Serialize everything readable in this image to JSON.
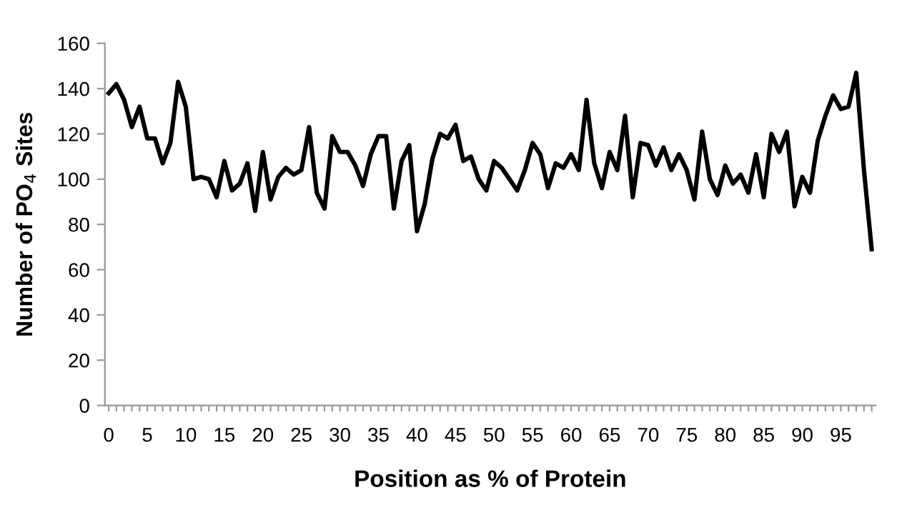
{
  "chart_data": {
    "type": "line",
    "xlabel": "Position as % of Protein",
    "ylabel": "Number of PO$_{4}$ Sites",
    "x": [
      0,
      1,
      2,
      3,
      4,
      5,
      6,
      7,
      8,
      9,
      10,
      11,
      12,
      13,
      14,
      15,
      16,
      17,
      18,
      19,
      20,
      21,
      22,
      23,
      24,
      25,
      26,
      27,
      28,
      29,
      30,
      31,
      32,
      33,
      34,
      35,
      36,
      37,
      38,
      39,
      40,
      41,
      42,
      43,
      44,
      45,
      46,
      47,
      48,
      49,
      50,
      51,
      52,
      53,
      54,
      55,
      56,
      57,
      58,
      59,
      60,
      61,
      62,
      63,
      64,
      65,
      66,
      67,
      68,
      69,
      70,
      71,
      72,
      73,
      74,
      75,
      76,
      77,
      78,
      79,
      80,
      81,
      82,
      83,
      84,
      85,
      86,
      87,
      88,
      89,
      90,
      91,
      92,
      93,
      94,
      95,
      96,
      97,
      98,
      99
    ],
    "series": [
      {
        "color": "#000000",
        "values": [
          138,
          142,
          135,
          123,
          132,
          118,
          118,
          107,
          116,
          143,
          132,
          100,
          101,
          100,
          92,
          108,
          95,
          98,
          107,
          86,
          112,
          91,
          101,
          105,
          102,
          104,
          123,
          94,
          87,
          119,
          112,
          112,
          106,
          97,
          111,
          119,
          119,
          87,
          108,
          115,
          77,
          89,
          109,
          120,
          118,
          124,
          108,
          110,
          100,
          95,
          108,
          105,
          100,
          95,
          104,
          116,
          111,
          96,
          107,
          105,
          111,
          104,
          135,
          107,
          96,
          112,
          104,
          128,
          92,
          116,
          115,
          106,
          114,
          104,
          111,
          104,
          91,
          121,
          100,
          93,
          106,
          98,
          102,
          94,
          111,
          92,
          120,
          112,
          121,
          88,
          101,
          94,
          117,
          128,
          137,
          131,
          132,
          147,
          104,
          69
        ]
      }
    ],
    "xlim": [
      -0.5,
      99.5
    ],
    "xticks": [
      0,
      {
        "value": 1,
        "label": null
      },
      {
        "value": 2,
        "label": null
      },
      {
        "value": 3,
        "label": null
      },
      {
        "value": 4,
        "label": null
      },
      5,
      {
        "value": 6,
        "label": null
      },
      {
        "value": 7,
        "label": null
      },
      {
        "value": 8,
        "label": null
      },
      {
        "value": 9,
        "label": null
      },
      10,
      {
        "value": 11,
        "label": null
      },
      {
        "value": 12,
        "label": null
      },
      {
        "value": 13,
        "label": null
      },
      {
        "value": 14,
        "label": null
      },
      15,
      {
        "value": 16,
        "label": null
      },
      {
        "value": 17,
        "label": null
      },
      {
        "value": 18,
        "label": null
      },
      {
        "value": 19,
        "label": null
      },
      20,
      {
        "value": 21,
        "label": null
      },
      {
        "value": 22,
        "label": null
      },
      {
        "value": 23,
        "label": null
      },
      {
        "value": 24,
        "label": null
      },
      25,
      {
        "value": 26,
        "label": null
      },
      {
        "value": 27,
        "label": null
      },
      {
        "value": 28,
        "label": null
      },
      {
        "value": 29,
        "label": null
      },
      30,
      {
        "value": 31,
        "label": null
      },
      {
        "value": 32,
        "label": null
      },
      {
        "value": 33,
        "label": null
      },
      {
        "value": 34,
        "label": null
      },
      35,
      {
        "value": 36,
        "label": null
      },
      {
        "value": 37,
        "label": null
      },
      {
        "value": 38,
        "label": null
      },
      {
        "value": 39,
        "label": null
      },
      40,
      {
        "value": 41,
        "label": null
      },
      {
        "value": 42,
        "label": null
      },
      {
        "value": 43,
        "label": null
      },
      {
        "value": 44,
        "label": null
      },
      45,
      {
        "value": 46,
        "label": null
      },
      {
        "value": 47,
        "label": null
      },
      {
        "value": 48,
        "label": null
      },
      {
        "value": 49,
        "label": null
      },
      50,
      {
        "value": 51,
        "label": null
      },
      {
        "value": 52,
        "label": null
      },
      {
        "value": 53,
        "label": null
      },
      {
        "value": 54,
        "label": null
      },
      55,
      {
        "value": 56,
        "label": null
      },
      {
        "value": 57,
        "label": null
      },
      {
        "value": 58,
        "label": null
      },
      {
        "value": 59,
        "label": null
      },
      60,
      {
        "value": 61,
        "label": null
      },
      {
        "value": 62,
        "label": null
      },
      {
        "value": 63,
        "label": null
      },
      {
        "value": 64,
        "label": null
      },
      65,
      {
        "value": 66,
        "label": null
      },
      {
        "value": 67,
        "label": null
      },
      {
        "value": 68,
        "label": null
      },
      {
        "value": 69,
        "label": null
      },
      70,
      {
        "value": 71,
        "label": null
      },
      {
        "value": 72,
        "label": null
      },
      {
        "value": 73,
        "label": null
      },
      {
        "value": 74,
        "label": null
      },
      75,
      {
        "value": 76,
        "label": null
      },
      {
        "value": 77,
        "label": null
      },
      {
        "value": 78,
        "label": null
      },
      {
        "value": 79,
        "label": null
      },
      80,
      {
        "value": 81,
        "label": null
      },
      {
        "value": 82,
        "label": null
      },
      {
        "value": 83,
        "label": null
      },
      {
        "value": 84,
        "label": null
      },
      85,
      {
        "value": 86,
        "label": null
      },
      {
        "value": 87,
        "label": null
      },
      {
        "value": 88,
        "label": null
      },
      {
        "value": 89,
        "label": null
      },
      90,
      {
        "value": 91,
        "label": null
      },
      {
        "value": 92,
        "label": null
      },
      {
        "value": 93,
        "label": null
      },
      {
        "value": 94,
        "label": null
      },
      95,
      {
        "value": 96,
        "label": null
      },
      {
        "value": 97,
        "label": null
      },
      {
        "value": 98,
        "label": null
      },
      {
        "value": 99,
        "label": null
      }
    ],
    "ylim": [
      0,
      160
    ],
    "yticks": [
      0,
      20,
      40,
      60,
      80,
      100,
      120,
      140,
      160
    ],
    "grid": false,
    "marker": "none",
    "line_style": "solid"
  }
}
